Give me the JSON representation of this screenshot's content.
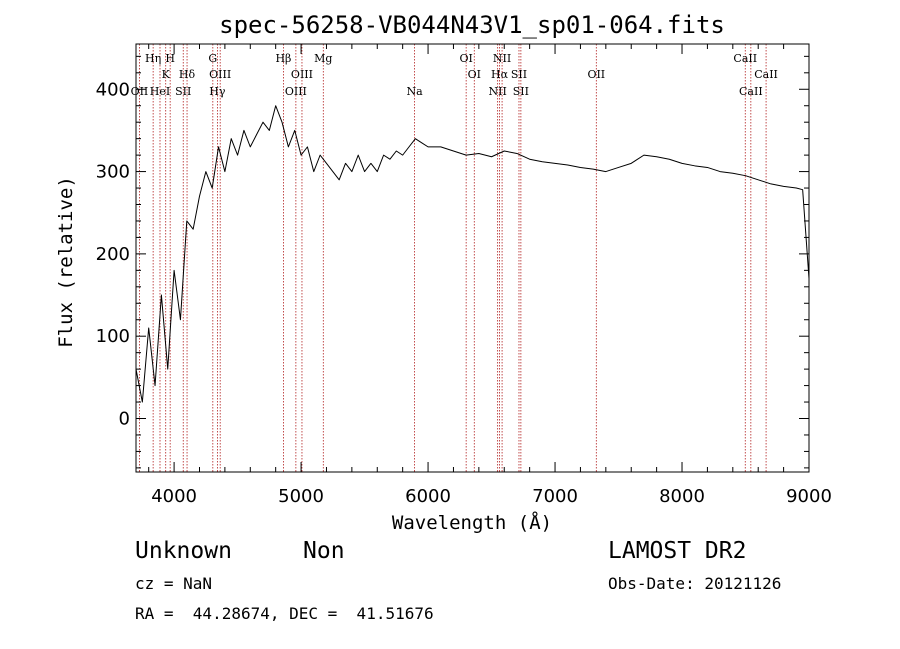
{
  "chart_data": {
    "type": "line",
    "title": "spec-56258-VB044N43V1_sp01-064.fits",
    "xlabel": "Wavelength (Å)",
    "ylabel": "Flux (relative)",
    "xlim": [
      3700,
      9000
    ],
    "ylim": [
      -65,
      455
    ],
    "xticks": [
      4000,
      5000,
      6000,
      7000,
      8000,
      9000
    ],
    "yticks": [
      0,
      100,
      200,
      300,
      400
    ],
    "grid": false,
    "line_color": "#000000",
    "marker_color": "#b22222",
    "series": [
      {
        "x": [
          3700,
          3750,
          3800,
          3850,
          3900,
          3950,
          4000,
          4050,
          4100,
          4150,
          4200,
          4250,
          4300,
          4350,
          4400,
          4450,
          4500,
          4550,
          4600,
          4650,
          4700,
          4750,
          4800,
          4850,
          4900,
          4950,
          5000,
          5050,
          5100,
          5150,
          5200,
          5250,
          5300,
          5350,
          5400,
          5450,
          5500,
          5550,
          5600,
          5650,
          5700,
          5750,
          5800,
          5850,
          5900,
          5950,
          6000,
          6100,
          6200,
          6300,
          6400,
          6500,
          6600,
          6700,
          6800,
          6900,
          7000,
          7100,
          7200,
          7300,
          7400,
          7500,
          7600,
          7700,
          7800,
          7900,
          8000,
          8100,
          8200,
          8300,
          8400,
          8500,
          8600,
          8700,
          8800,
          8900,
          8950,
          9000
        ],
        "y": [
          60,
          20,
          110,
          40,
          150,
          60,
          180,
          120,
          240,
          230,
          270,
          300,
          280,
          330,
          300,
          340,
          320,
          350,
          330,
          345,
          360,
          350,
          380,
          360,
          330,
          350,
          320,
          330,
          300,
          320,
          310,
          300,
          290,
          310,
          300,
          320,
          300,
          310,
          300,
          320,
          315,
          325,
          320,
          330,
          340,
          335,
          330,
          330,
          325,
          320,
          322,
          318,
          325,
          322,
          315,
          312,
          310,
          308,
          305,
          303,
          300,
          305,
          310,
          320,
          318,
          315,
          310,
          307,
          305,
          300,
          298,
          295,
          290,
          285,
          282,
          280,
          278,
          170
        ]
      }
    ],
    "lines": [
      {
        "wl": 3727,
        "label": "OII",
        "row": 3
      },
      {
        "wl": 3835,
        "label": "Hη",
        "row": 1
      },
      {
        "wl": 3889,
        "label": "HeI",
        "row": 3
      },
      {
        "wl": 3934,
        "label": "K",
        "row": 2
      },
      {
        "wl": 3969,
        "label": "H",
        "row": 1
      },
      {
        "wl": 4072,
        "label": "SII",
        "row": 3
      },
      {
        "wl": 4102,
        "label": "Hδ",
        "row": 2
      },
      {
        "wl": 4305,
        "label": "G",
        "row": 1
      },
      {
        "wl": 4341,
        "label": "Hγ",
        "row": 3
      },
      {
        "wl": 4363,
        "label": "OIII",
        "row": 2
      },
      {
        "wl": 4861,
        "label": "Hβ",
        "row": 1
      },
      {
        "wl": 4959,
        "label": "OIII",
        "row": 3
      },
      {
        "wl": 5007,
        "label": "OIII",
        "row": 2
      },
      {
        "wl": 5175,
        "label": "Mg",
        "row": 1
      },
      {
        "wl": 5894,
        "label": "Na",
        "row": 3
      },
      {
        "wl": 6300,
        "label": "OI",
        "row": 1
      },
      {
        "wl": 6364,
        "label": "OI",
        "row": 2
      },
      {
        "wl": 6548,
        "label": "NII",
        "row": 3
      },
      {
        "wl": 6563,
        "label": "Hα",
        "row": 2
      },
      {
        "wl": 6583,
        "label": "NII",
        "row": 1
      },
      {
        "wl": 6716,
        "label": "SII",
        "row": 2
      },
      {
        "wl": 6731,
        "label": "SII",
        "row": 3
      },
      {
        "wl": 7325,
        "label": "OII",
        "row": 2
      },
      {
        "wl": 8498,
        "label": "CaII",
        "row": 1
      },
      {
        "wl": 8542,
        "label": "CaII",
        "row": 3
      },
      {
        "wl": 8662,
        "label": "CaII",
        "row": 2
      }
    ]
  },
  "info": {
    "class": "Unknown",
    "subclass": "Non",
    "survey": "LAMOST DR2",
    "cz": "cz = NaN",
    "obs_date": "Obs-Date: 20121126",
    "coords": "RA =  44.28674, DEC =  41.51676"
  }
}
